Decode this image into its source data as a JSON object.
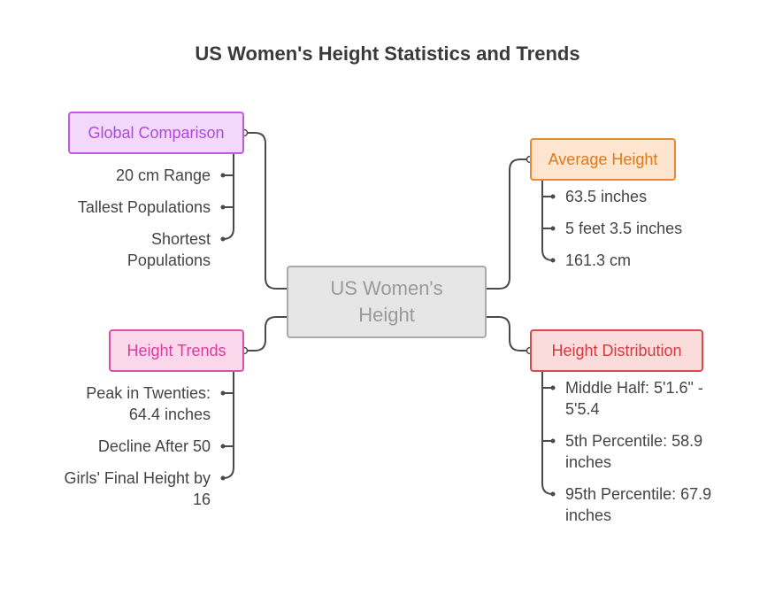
{
  "title": "US Women's Height Statistics and Trends",
  "center": {
    "label": "US Women's Height"
  },
  "branches": {
    "global": {
      "label": "Global Comparison",
      "items": [
        "20 cm Range",
        "Tallest Populations",
        "Shortest Populations"
      ]
    },
    "average": {
      "label": "Average Height",
      "items": [
        "63.5 inches",
        "5 feet 3.5 inches",
        "161.3 cm"
      ]
    },
    "trends": {
      "label": "Height Trends",
      "items": [
        "Peak in Twenties: 64.4 inches",
        "Decline After 50",
        "Girls' Final Height by 16"
      ]
    },
    "distribution": {
      "label": "Height Distribution",
      "items": [
        "Middle Half: 5'1.6\" - 5'5.4",
        "5th Percentile: 58.9 inches",
        "95th Percentile: 67.9 inches"
      ]
    }
  },
  "colors": {
    "connector": "#4a4a4a",
    "global": "#c05ae0",
    "average": "#e68a34",
    "trends": "#d94fa3",
    "distribution": "#d9484d",
    "center": "#a9a9a9"
  }
}
